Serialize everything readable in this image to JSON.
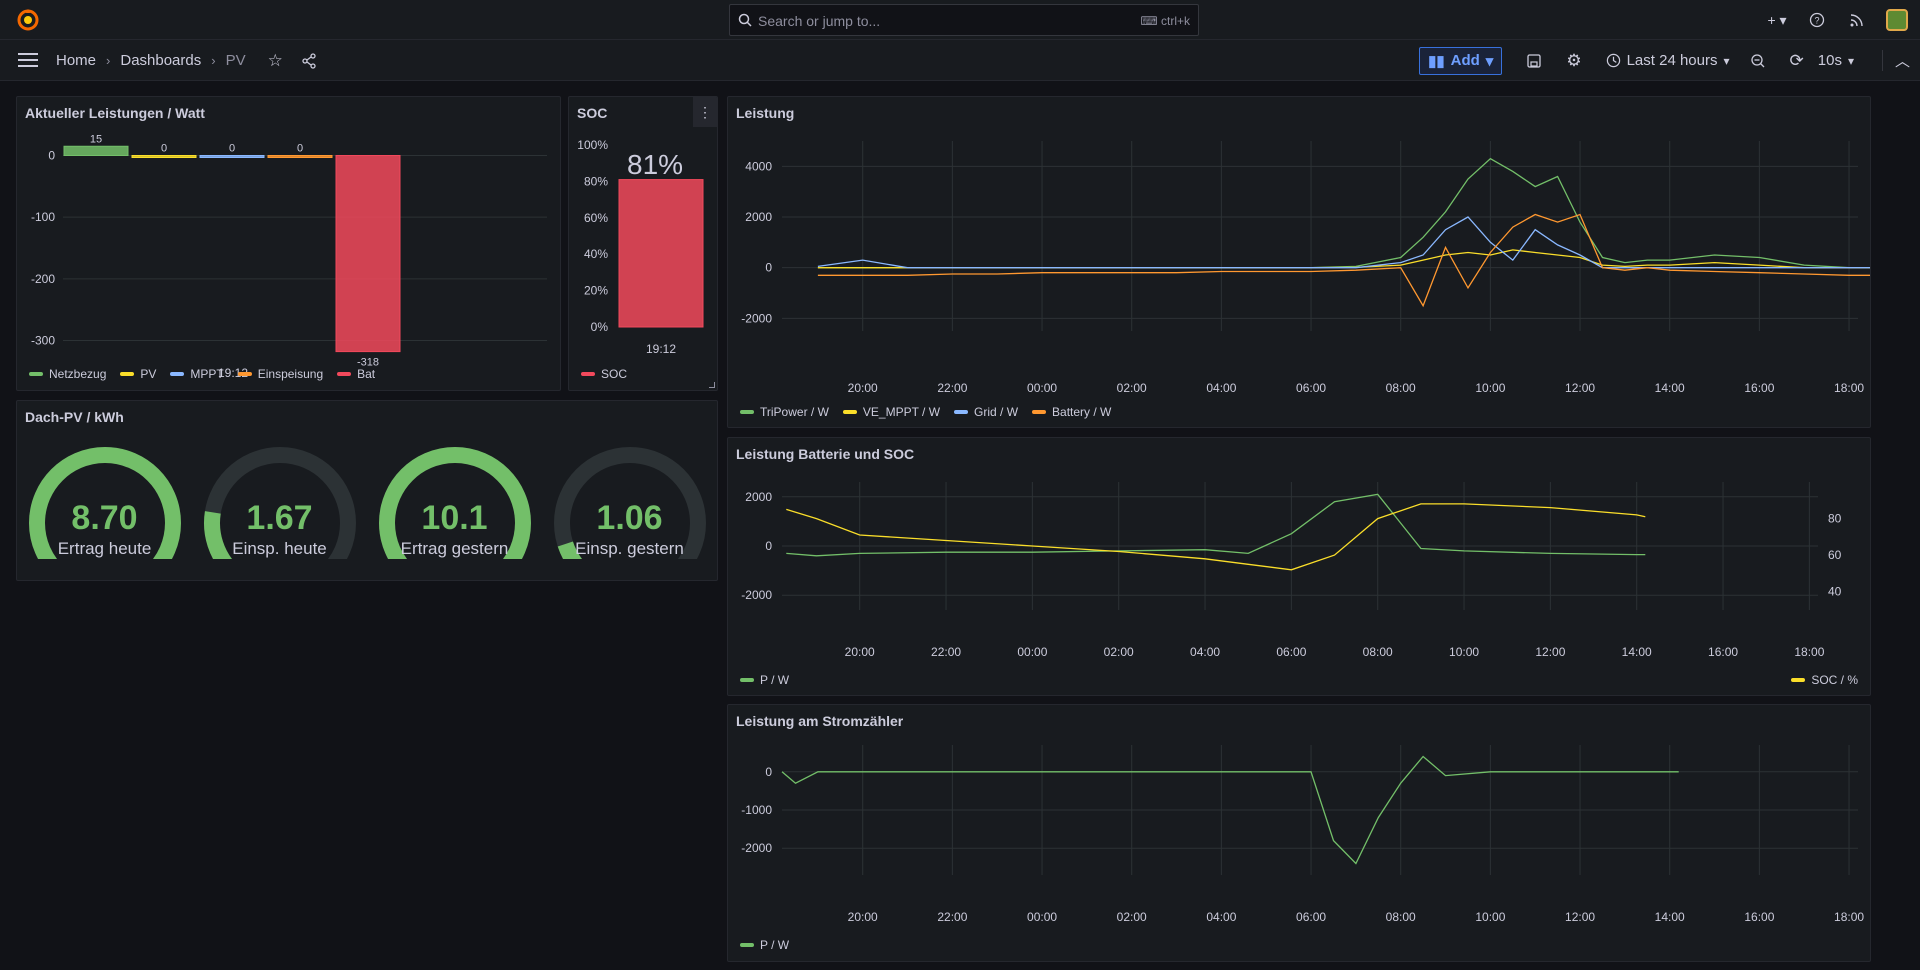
{
  "topbar": {
    "search_placeholder": "Search or jump to...",
    "shortcut": "ctrl+k",
    "icons": [
      "grafana-logo-icon",
      "search-icon",
      "keyboard-icon",
      "plus-icon",
      "help-icon",
      "rss-icon",
      "avatar"
    ]
  },
  "navbar": {
    "crumbs": [
      "Home",
      "Dashboards",
      "PV"
    ],
    "add_label": "Add",
    "time_range": "Last 24 hours",
    "refresh": "10s"
  },
  "colors": {
    "green": "#73bf69",
    "yellow": "#fade2a",
    "blue": "#8ab8ff",
    "orange": "#ff9830",
    "red": "#f2495c"
  },
  "panel_leistungen": {
    "title": "Aktueller Leistungen / Watt",
    "time": "19:12",
    "legend": [
      "Netzbezug",
      "PV",
      "MPPT",
      "Einspeisung",
      "Bat"
    ]
  },
  "panel_soc": {
    "title": "SOC",
    "value": "81%",
    "time": "19:12",
    "legend": [
      "SOC"
    ]
  },
  "panel_dach": {
    "title": "Dach-PV / kWh",
    "gauges": [
      {
        "value": "8.70",
        "label": "Ertrag heute"
      },
      {
        "value": "1.67",
        "label": "Einsp. heute"
      },
      {
        "value": "10.1",
        "label": "Ertrag gestern"
      },
      {
        "value": "1.06",
        "label": "Einsp. gestern"
      }
    ]
  },
  "panel_leistung": {
    "title": "Leistung",
    "legend": [
      "TriPower / W",
      "VE_MPPT / W",
      "Grid / W",
      "Battery / W"
    ]
  },
  "panel_batt": {
    "title": "Leistung Batterie und SOC",
    "legend_left": "P / W",
    "legend_right": "SOC / %"
  },
  "panel_zaehler": {
    "title": "Leistung am Stromzähler",
    "legend": [
      "P / W"
    ]
  },
  "chart_data": [
    {
      "type": "bar",
      "title": "Aktueller Leistungen / Watt",
      "categories": [
        "19:12"
      ],
      "series": [
        {
          "name": "Netzbezug",
          "values": [
            15
          ]
        },
        {
          "name": "PV",
          "values": [
            0
          ]
        },
        {
          "name": "MPPT",
          "values": [
            0
          ]
        },
        {
          "name": "Einspeisung",
          "values": [
            0
          ]
        },
        {
          "name": "Bat",
          "values": [
            -318
          ]
        }
      ],
      "yticks": [
        "0",
        "-100",
        "-200",
        "-300"
      ],
      "ylim": [
        -330,
        30
      ]
    },
    {
      "type": "bar",
      "title": "SOC",
      "categories": [
        "19:12"
      ],
      "series": [
        {
          "name": "SOC",
          "values": [
            81
          ]
        }
      ],
      "yticks": [
        "100%",
        "80%",
        "60%",
        "40%",
        "20%",
        "0%"
      ],
      "ylim": [
        0,
        100
      ]
    },
    {
      "type": "line",
      "title": "Leistung",
      "xticks": [
        "20:00",
        "22:00",
        "00:00",
        "02:00",
        "04:00",
        "06:00",
        "08:00",
        "10:00",
        "12:00",
        "14:00",
        "16:00",
        "18:00"
      ],
      "yticks": [
        "4000",
        "2000",
        "0",
        "-2000"
      ],
      "x_hours": [
        -1,
        0,
        1,
        2,
        3,
        4,
        5,
        6,
        7,
        8,
        9,
        10,
        11,
        12,
        12.5,
        13,
        13.5,
        14,
        14.5,
        15,
        15.5,
        16,
        16.5,
        17,
        17.5,
        18,
        19,
        20,
        21,
        22,
        23
      ],
      "series": [
        {
          "name": "TriPower / W",
          "values": [
            0,
            0,
            0,
            0,
            0,
            0,
            0,
            0,
            0,
            0,
            0,
            0,
            50,
            400,
            1200,
            2200,
            3500,
            4300,
            3800,
            3200,
            3600,
            1800,
            400,
            200,
            300,
            300,
            500,
            400,
            100,
            0,
            0
          ]
        },
        {
          "name": "VE_MPPT / W",
          "values": [
            0,
            0,
            0,
            0,
            0,
            0,
            0,
            0,
            0,
            0,
            0,
            0,
            10,
            100,
            300,
            500,
            600,
            500,
            700,
            600,
            500,
            400,
            100,
            50,
            100,
            100,
            200,
            100,
            0,
            0,
            0
          ]
        },
        {
          "name": "Grid / W",
          "values": [
            50,
            300,
            0,
            0,
            0,
            0,
            0,
            0,
            0,
            0,
            0,
            0,
            0,
            200,
            500,
            1500,
            2000,
            1000,
            300,
            1500,
            900,
            500,
            0,
            0,
            0,
            0,
            0,
            0,
            0,
            0,
            0
          ]
        },
        {
          "name": "Battery / W",
          "values": [
            -300,
            -300,
            -300,
            -250,
            -250,
            -200,
            -200,
            -200,
            -200,
            -150,
            -150,
            -150,
            -100,
            0,
            -1500,
            800,
            -800,
            600,
            1600,
            2100,
            1800,
            2100,
            0,
            -100,
            0,
            -100,
            -150,
            -200,
            -250,
            -300,
            -300
          ]
        }
      ]
    },
    {
      "type": "line",
      "title": "Leistung Batterie und SOC",
      "xticks": [
        "20:00",
        "22:00",
        "00:00",
        "02:00",
        "04:00",
        "06:00",
        "08:00",
        "10:00",
        "12:00",
        "14:00",
        "16:00",
        "18:00"
      ],
      "yticks_left": [
        "2000",
        "0",
        "-2000"
      ],
      "yticks_right": [
        "80",
        "60",
        "40"
      ],
      "x_hours": [
        -1.7,
        -1,
        0,
        2,
        4,
        6,
        8,
        9,
        10,
        11,
        12,
        13,
        14,
        16,
        18,
        18.2
      ],
      "series": [
        {
          "name": "P / W",
          "axis": "left",
          "values": [
            -300,
            -400,
            -300,
            -250,
            -250,
            -200,
            -150,
            -300,
            500,
            1800,
            2100,
            -100,
            -200,
            -300,
            -350,
            -350
          ]
        },
        {
          "name": "SOC / %",
          "axis": "right",
          "values": [
            85,
            80,
            71,
            68,
            65,
            62,
            58,
            55,
            52,
            60,
            80,
            88,
            88,
            86,
            82,
            81
          ]
        }
      ]
    },
    {
      "type": "line",
      "title": "Leistung am Stromzähler",
      "xticks": [
        "20:00",
        "22:00",
        "00:00",
        "02:00",
        "04:00",
        "06:00",
        "08:00",
        "10:00",
        "12:00",
        "14:00",
        "16:00",
        "18:00"
      ],
      "yticks": [
        "0",
        "-1000",
        "-2000"
      ],
      "x_hours": [
        -1.8,
        -1.5,
        -1,
        0,
        2,
        4,
        6,
        8,
        9,
        10,
        10.5,
        11,
        11.5,
        12,
        12.5,
        13,
        14,
        16,
        17,
        18,
        18.2
      ],
      "series": [
        {
          "name": "P / W",
          "values": [
            0,
            -300,
            0,
            0,
            0,
            0,
            0,
            0,
            0,
            0,
            -1800,
            -2400,
            -1200,
            -300,
            400,
            -100,
            0,
            0,
            0,
            0,
            0
          ]
        }
      ]
    }
  ]
}
